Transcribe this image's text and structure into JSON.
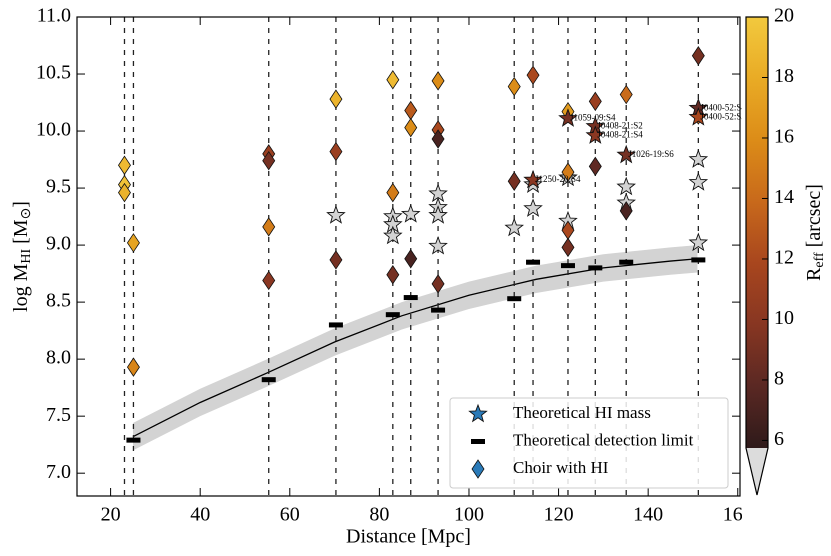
{
  "chart_data": {
    "type": "scatter",
    "xlabel": "Distance [Mpc]",
    "ylabel_parts": [
      "log M",
      "HI",
      " [M",
      "⊙",
      "]"
    ],
    "xlim": [
      12.5,
      160.5
    ],
    "ylim": [
      6.8,
      11.0
    ],
    "xticks": [
      20,
      40,
      60,
      80,
      100,
      120,
      140,
      160
    ],
    "yticks": [
      {
        "value": 7.0,
        "label": "7.0"
      },
      7.5,
      {
        "value": 8.0,
        "label": "8.0"
      },
      8.5,
      {
        "value": 9.0,
        "label": "9.0"
      },
      9.5,
      {
        "value": 10.0,
        "label": "10.0"
      },
      10.5,
      {
        "value": 11.0,
        "label": "11.0"
      }
    ],
    "distances": [
      23.1,
      25.1,
      55.3,
      70.3,
      83.0,
      87.0,
      93.1,
      110.1,
      114.3,
      122.1,
      128.2,
      135.1,
      151.2
    ],
    "curve": {
      "x": [
        25,
        40,
        55,
        70,
        85,
        100,
        115,
        130,
        145,
        151
      ],
      "y": [
        7.32,
        7.62,
        7.88,
        8.15,
        8.38,
        8.56,
        8.7,
        8.8,
        8.86,
        8.88
      ],
      "upper": [
        7.44,
        7.74,
        8.0,
        8.27,
        8.5,
        8.68,
        8.82,
        8.92,
        8.98,
        9.0
      ],
      "lower": [
        7.2,
        7.5,
        7.76,
        8.03,
        8.26,
        8.44,
        8.58,
        8.68,
        8.74,
        8.76
      ],
      "color": "#000000",
      "band_color": "#d3d3d3"
    },
    "series": [
      {
        "name": "Theoretical HI mass",
        "marker": "star",
        "color": "#d3d3d3",
        "legend_color": "#2a7ab8",
        "x": [
          70.3,
          83.0,
          83.0,
          83.0,
          87.0,
          93.1,
          93.1,
          93.1,
          93.1,
          110.1,
          114.3,
          114.3,
          122.1,
          122.1,
          135.1,
          135.1,
          151.2,
          151.2,
          151.2
        ],
        "y": [
          9.26,
          9.25,
          9.18,
          9.08,
          9.27,
          9.45,
          9.33,
          9.26,
          8.99,
          9.15,
          9.53,
          9.32,
          9.21,
          9.59,
          9.51,
          9.37,
          9.75,
          9.55,
          9.02
        ]
      },
      {
        "name": "Theoretical detection limit",
        "marker": "dash",
        "color": "#000000",
        "x": [
          25.1,
          55.3,
          70.3,
          83.0,
          87.0,
          93.1,
          110.1,
          114.3,
          122.1,
          128.2,
          135.1,
          151.2
        ],
        "y": [
          7.29,
          7.82,
          8.3,
          8.39,
          8.54,
          8.43,
          8.53,
          8.85,
          8.82,
          8.8,
          8.85,
          8.87
        ]
      },
      {
        "name": "Choir with HI",
        "marker": "diamond",
        "legend_color": "#2a7ab8",
        "x": [
          23.1,
          23.1,
          23.1,
          25.1,
          25.1,
          55.3,
          55.3,
          55.3,
          55.3,
          70.3,
          70.3,
          70.3,
          83.0,
          83.0,
          83.0,
          87.0,
          87.0,
          87.0,
          93.1,
          93.1,
          93.1,
          93.1,
          110.1,
          110.1,
          114.3,
          122.1,
          122.1,
          122.1,
          122.1,
          128.2,
          128.2,
          135.1,
          135.1,
          151.2,
          151.2
        ],
        "y": [
          9.7,
          9.53,
          9.46,
          9.02,
          7.93,
          9.8,
          9.74,
          9.16,
          8.69,
          10.28,
          9.82,
          8.87,
          10.45,
          9.46,
          8.74,
          10.18,
          10.03,
          8.88,
          10.44,
          10.01,
          9.93,
          8.66,
          10.39,
          9.56,
          10.49,
          10.17,
          9.64,
          9.13,
          8.98,
          10.26,
          9.69,
          10.32,
          9.3,
          10.66,
          10.14
        ],
        "reff": [
          19,
          19.5,
          18.5,
          17.5,
          15.5,
          11,
          9,
          15,
          10,
          18.5,
          11,
          9,
          19,
          15,
          9,
          13,
          16,
          7,
          16,
          12,
          7,
          9,
          16,
          9,
          12,
          17,
          15,
          12,
          9,
          11,
          8,
          14,
          7,
          9,
          14
        ]
      }
    ],
    "annotations": [
      {
        "label": "J1250-20:S4",
        "x": 114.3,
        "y": 9.57,
        "reff": 10
      },
      {
        "label": "J1059-09:S4",
        "x": 122.1,
        "y": 10.11,
        "reff": 9
      },
      {
        "label": "J0408-21:S2",
        "x": 128.2,
        "y": 10.04,
        "reff": 9
      },
      {
        "label": "J0408-21:S4",
        "x": 128.2,
        "y": 9.96,
        "reff": 10
      },
      {
        "label": "J1026-19:S6",
        "x": 135.1,
        "y": 9.79,
        "reff": 9
      },
      {
        "label": "J0400-52:S4",
        "x": 151.2,
        "y": 10.2,
        "reff": 8
      },
      {
        "label": "J0400-52:S3",
        "x": 151.2,
        "y": 10.12,
        "reff": 12
      }
    ],
    "legend": "lower right",
    "colorbar": {
      "label_parts": [
        "R",
        "eff",
        " [arcsec]"
      ],
      "lim": [
        5.75,
        20
      ],
      "ticks": [
        6,
        8,
        10,
        12,
        14,
        16,
        18,
        20
      ],
      "colors": [
        "#2e1a1a",
        "#5a2823",
        "#873622",
        "#a8461e",
        "#c8691b",
        "#dc8c18",
        "#e9ab25",
        "#f2c93e"
      ],
      "under_color": "#dcdcdc"
    }
  }
}
